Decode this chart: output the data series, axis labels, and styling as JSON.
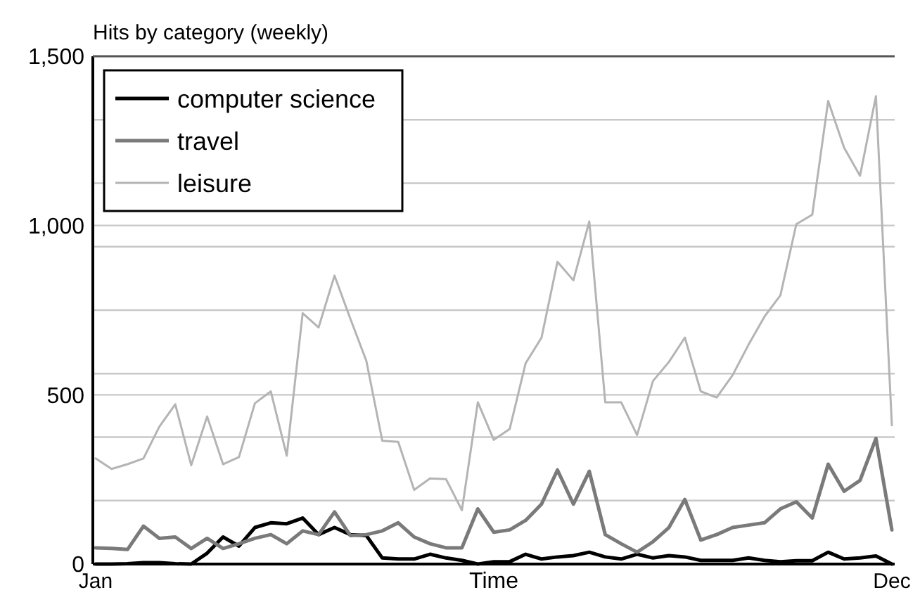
{
  "chart_data": {
    "type": "line",
    "title": "Hits by category (weekly)",
    "xlabel": "Time",
    "categories": [
      "Jan",
      null,
      null,
      null,
      null,
      null,
      null,
      null,
      null,
      null,
      null,
      null,
      null,
      null,
      null,
      null,
      null,
      null,
      null,
      null,
      null,
      null,
      null,
      null,
      null,
      null,
      null,
      null,
      null,
      null,
      null,
      null,
      null,
      null,
      null,
      null,
      null,
      null,
      null,
      null,
      null,
      null,
      null,
      null,
      null,
      null,
      null,
      null,
      null,
      null,
      "Dec"
    ],
    "series": [
      {
        "name": "computer science",
        "color": "#000000",
        "values": [
          0,
          0,
          1,
          4,
          4,
          1,
          0,
          32,
          80,
          53,
          108,
          122,
          119,
          136,
          87,
          108,
          87,
          84,
          18,
          15,
          15,
          29,
          18,
          11,
          0,
          7,
          7,
          29,
          15,
          21,
          25,
          35,
          21,
          15,
          29,
          18,
          25,
          21,
          11,
          11,
          11,
          18,
          11,
          7,
          10,
          10,
          35,
          15,
          18,
          24,
          0
        ]
      },
      {
        "name": "travel",
        "color": "#7a7a7a",
        "values": [
          48,
          46,
          43,
          112,
          76,
          80,
          46,
          76,
          46,
          60,
          76,
          87,
          60,
          98,
          87,
          154,
          84,
          87,
          98,
          122,
          80,
          60,
          48,
          48,
          163,
          94,
          101,
          129,
          177,
          278,
          177,
          274,
          87,
          60,
          35,
          66,
          108,
          191,
          71,
          87,
          108,
          115,
          122,
          163,
          184,
          136,
          295,
          215,
          247,
          371,
          101
        ]
      },
      {
        "name": "leisure",
        "color": "#b4b4b4",
        "values": [
          312,
          281,
          295,
          312,
          406,
          472,
          292,
          436,
          295,
          316,
          475,
          510,
          320,
          741,
          699,
          852,
          724,
          600,
          364,
          361,
          219,
          253,
          251,
          159,
          478,
          367,
          399,
          593,
          669,
          893,
          838,
          1012,
          478,
          478,
          381,
          541,
          597,
          669,
          510,
          492,
          558,
          648,
          731,
          794,
          1004,
          1032,
          1368,
          1230,
          1147,
          1382,
          410
        ]
      }
    ],
    "ylim": [
      0,
      1500
    ],
    "yticks": [
      0,
      {
        "value": 187.5,
        "label": null
      },
      {
        "value": 375,
        "label": null
      },
      500,
      {
        "value": 562.5,
        "label": null
      },
      {
        "value": 750,
        "label": null
      },
      {
        "value": 937.5,
        "label": null
      },
      {
        "value": 1000,
        "label": "1,000"
      },
      {
        "value": 1125,
        "label": null
      },
      {
        "value": 1312.5,
        "label": null
      },
      {
        "value": 1500,
        "label": "1,500"
      }
    ],
    "grid": "y",
    "legend": "top left",
    "line_style": "solid"
  }
}
